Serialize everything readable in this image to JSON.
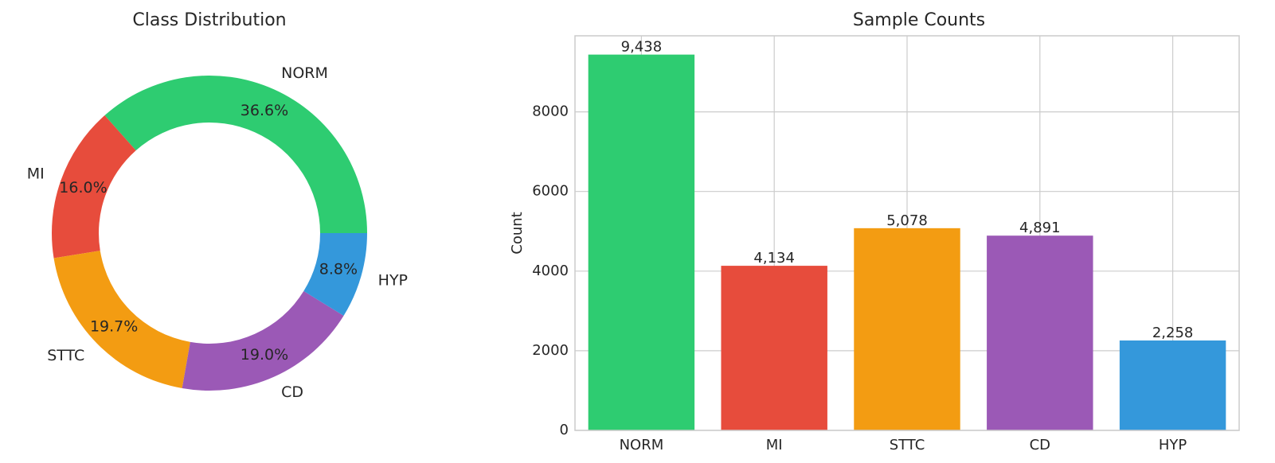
{
  "chart_data": [
    {
      "type": "pie",
      "title": "Class Distribution",
      "donut": true,
      "start_angle_deg": 0,
      "direction": "counterclockwise",
      "categories": [
        "NORM",
        "MI",
        "STTC",
        "CD",
        "HYP"
      ],
      "values": [
        36.6,
        16.0,
        19.7,
        19.0,
        8.8
      ],
      "value_labels": [
        "36.6%",
        "16.0%",
        "19.7%",
        "19.0%",
        "8.8%"
      ],
      "colors": [
        "#2ecc71",
        "#e74c3c",
        "#f39c12",
        "#9b59b6",
        "#3498db"
      ]
    },
    {
      "type": "bar",
      "title": "Sample Counts",
      "categories": [
        "NORM",
        "MI",
        "STTC",
        "CD",
        "HYP"
      ],
      "values": [
        9438,
        4134,
        5078,
        4891,
        2258
      ],
      "value_labels": [
        "9,438",
        "4,134",
        "5,078",
        "4,891",
        "2,258"
      ],
      "colors": [
        "#2ecc71",
        "#e74c3c",
        "#f39c12",
        "#9b59b6",
        "#3498db"
      ],
      "xlabel": "",
      "ylabel": "Count",
      "ylim": [
        0,
        9910
      ],
      "yticks": [
        0,
        2000,
        4000,
        6000,
        8000
      ],
      "ytick_labels": [
        "0",
        "2000",
        "4000",
        "6000",
        "8000"
      ],
      "grid": true
    }
  ]
}
